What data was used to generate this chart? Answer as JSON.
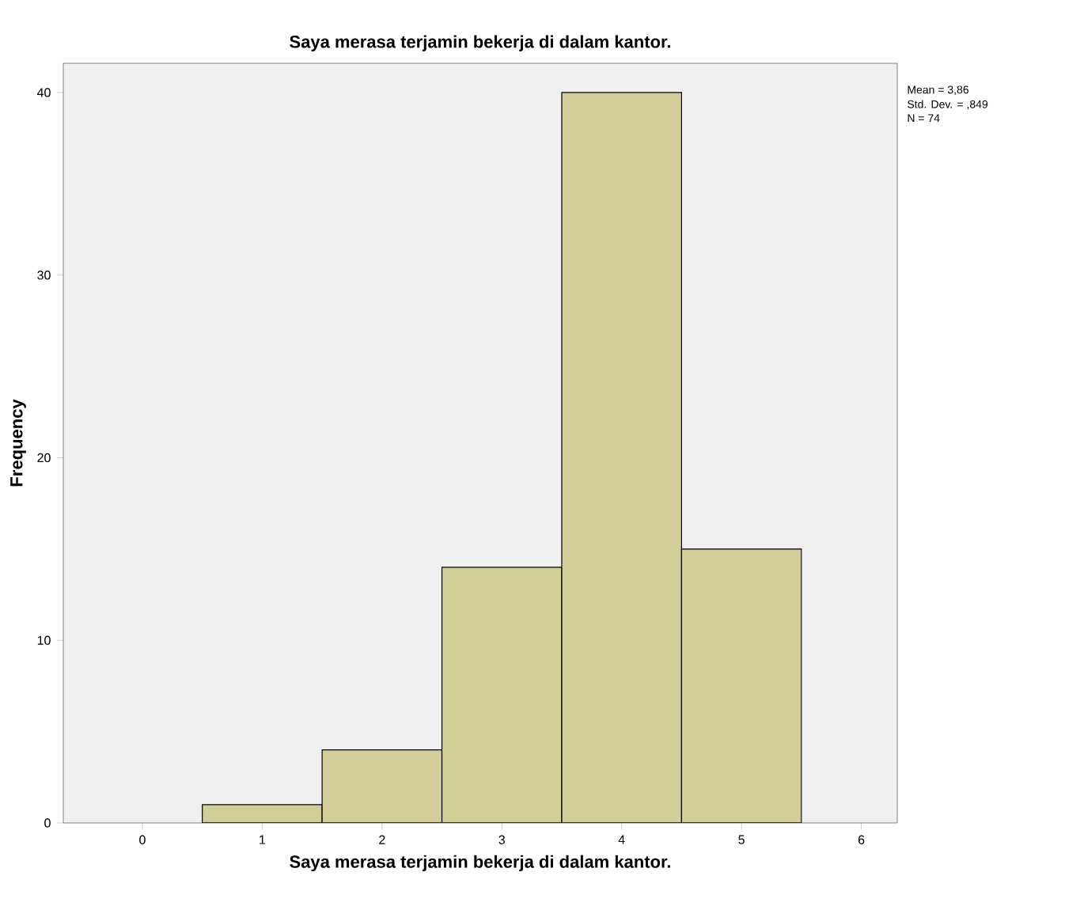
{
  "chart_data": {
    "type": "histogram",
    "title": "Saya merasa terjamin bekerja di dalam kantor.",
    "xlabel": "Saya merasa terjamin bekerja di dalam kantor.",
    "ylabel": "Frequency",
    "bins": [
      0.5,
      1.5,
      2.5,
      3.5,
      4.5,
      5.5
    ],
    "values": [
      1,
      4,
      14,
      40,
      15
    ],
    "color": "#d3cd9a",
    "xlim": [
      -0.66,
      6.3
    ],
    "ylim": [
      0,
      41.6
    ],
    "xticks": [
      0,
      1,
      2,
      3,
      4,
      5,
      6
    ],
    "yticks": [
      0,
      10,
      20,
      30,
      40
    ],
    "annotations": [
      "Mean = 3,86",
      "Std. Dev. = ,849",
      "N = 74"
    ]
  }
}
